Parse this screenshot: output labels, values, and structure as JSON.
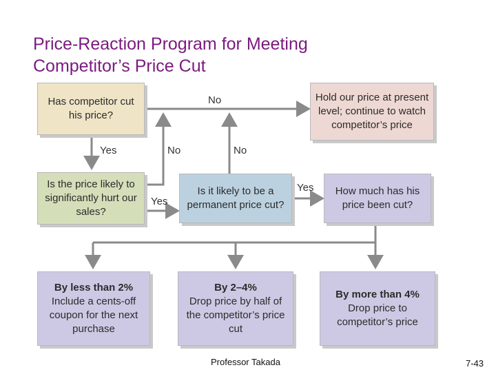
{
  "title_lines": [
    "Price-Reaction Program for Meeting",
    "Competitor’s Price Cut"
  ],
  "boxes": {
    "has_cut": "Has competitor cut his price?",
    "hold": "Hold our price at present level; continue to watch competitor’s price",
    "hurt": "Is the price likely to significantly hurt our sales?",
    "permanent": "Is it likely to be a permanent price cut?",
    "how_much": "How much has his price been cut?",
    "less2_head": "By less than 2%",
    "less2_body": "Include a cents-off coupon for the next purchase",
    "mid_head": "By 2–4%",
    "mid_body": "Drop price by half of the competitor’s price cut",
    "more4_head": "By more than 4%",
    "more4_body": "Drop price to competitor’s price"
  },
  "labels": {
    "no_top": "No",
    "yes_down": "Yes",
    "no_left": "No",
    "no_mid": "No",
    "yes_hurt": "Yes",
    "yes_perm": "Yes"
  },
  "footer": {
    "presenter": "Professor Takada",
    "slide_number": "7-43"
  },
  "colors": {
    "title": "#7a1a7f",
    "arrow": "#8a8a8a"
  }
}
